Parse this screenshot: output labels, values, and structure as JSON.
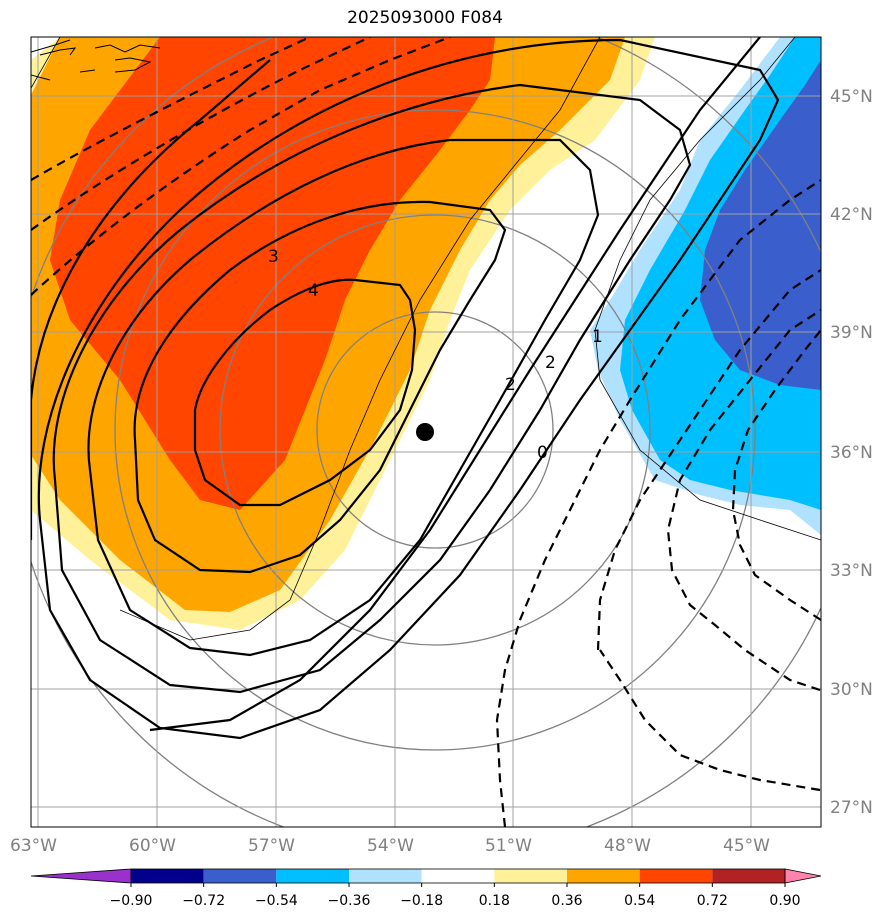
{
  "title": "2025093000 F084",
  "lat_labels": [
    "45°N",
    "42°N",
    "39°N",
    "36°N",
    "33°N",
    "30°N",
    "27°N"
  ],
  "lon_labels": [
    "63°W",
    "60°W",
    "57°W",
    "54°W",
    "51°W",
    "48°W",
    "45°W"
  ],
  "contour_labels": [
    "3",
    "4",
    "2",
    "2",
    "1",
    "0"
  ],
  "colorbar": {
    "ticks": [
      "−0.90",
      "−0.72",
      "−0.54",
      "−0.36",
      "−0.18",
      "0.18",
      "0.36",
      "0.54",
      "0.72",
      "0.90"
    ],
    "colors": [
      "#9932cc",
      "#00008b",
      "#3a5fcd",
      "#00bfff",
      "#b0e2ff",
      "#ffffff",
      "#fff19a",
      "#ffa500",
      "#ff4500",
      "#b22222",
      "#ff82ab"
    ]
  },
  "storm_marker": "black-dot"
}
